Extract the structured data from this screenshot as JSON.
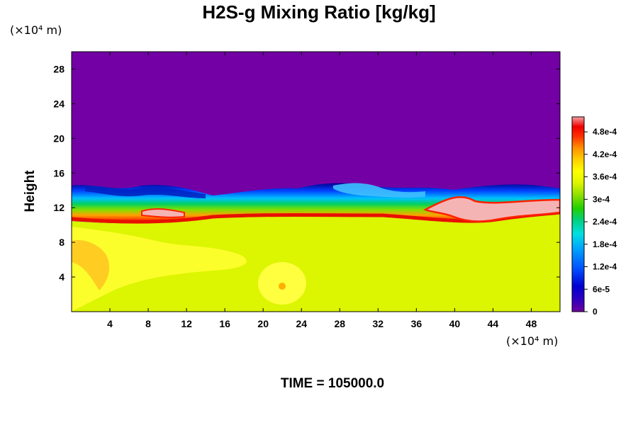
{
  "chart_data": {
    "type": "heatmap",
    "title": "H2S-g Mixing Ratio [kg/kg]",
    "ylabel": "Height",
    "x_unit": "(×10⁴ m)",
    "y_unit": "(×10⁴ m)",
    "xlim": [
      0,
      51
    ],
    "ylim": [
      0,
      30
    ],
    "x_ticks": [
      "4",
      "8",
      "12",
      "16",
      "20",
      "24",
      "28",
      "32",
      "36",
      "40",
      "44",
      "48"
    ],
    "y_ticks": [
      "4",
      "8",
      "12",
      "16",
      "20",
      "24",
      "28"
    ],
    "x_tick_values": [
      4,
      8,
      12,
      16,
      20,
      24,
      28,
      32,
      36,
      40,
      44,
      48
    ],
    "y_tick_values": [
      4,
      8,
      12,
      16,
      20,
      24,
      28
    ],
    "colorbar": {
      "range": [
        0,
        0.00052
      ],
      "tick_labels": [
        "0",
        "6e-5",
        "1.2e-4",
        "1.8e-4",
        "2.4e-4",
        "3e-4",
        "3.6e-4",
        "4.2e-4",
        "4.8e-4"
      ],
      "tick_values": [
        0,
        6e-05,
        0.00012,
        0.00018,
        0.00024,
        0.0003,
        0.00036,
        0.00042,
        0.00048
      ]
    },
    "regions": [
      {
        "description_value": 0.0,
        "y_from": 13.5,
        "y_to": 30
      },
      {
        "description_value": 0.00036,
        "y_from": 0,
        "y_to": 10.5
      },
      {
        "description_value": 0.0005,
        "y_from": 10.5,
        "y_to": 12.5
      }
    ]
  },
  "footer": {
    "time_label": "TIME = 105000.0"
  },
  "colors": {
    "background_top": "#7300a5",
    "lower": "#dcf500",
    "band": "#f5b4b4"
  }
}
